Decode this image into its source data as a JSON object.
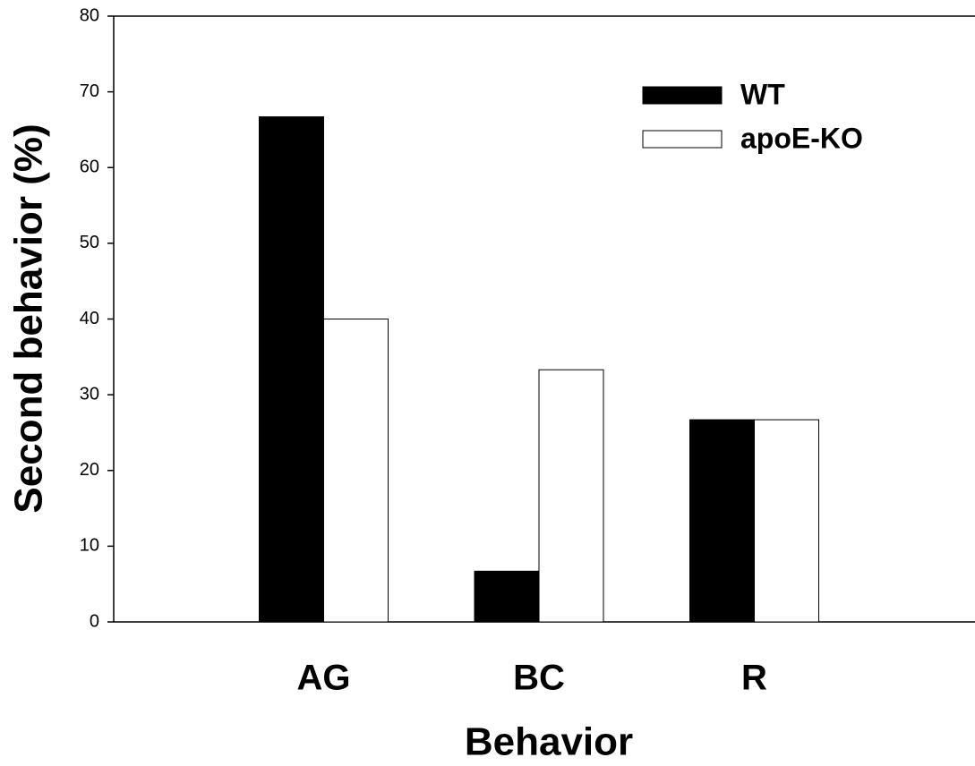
{
  "chart_data": {
    "type": "bar",
    "x_label": "Behavior",
    "y_label": "Second behavior (%)",
    "categories": [
      "AG",
      "BC",
      "R"
    ],
    "series": [
      {
        "name": "WT",
        "color": "#000000",
        "values": [
          66.7,
          6.7,
          26.7
        ]
      },
      {
        "name": "apoE-KO",
        "color": "#ffffff",
        "values": [
          40,
          33.3,
          26.7
        ]
      }
    ],
    "ylim": [
      0,
      80
    ],
    "yticks": [
      0,
      10,
      20,
      30,
      40,
      50,
      60,
      70,
      80
    ]
  }
}
